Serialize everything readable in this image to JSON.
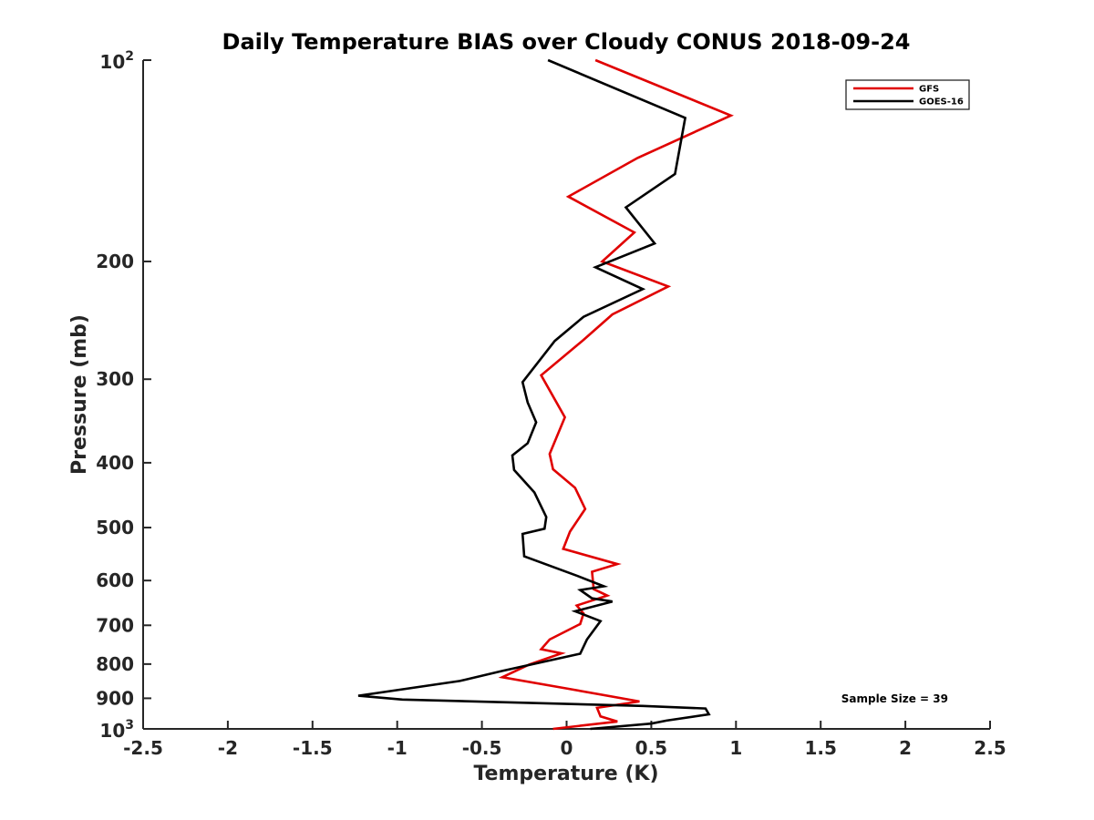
{
  "chart_data": {
    "type": "line",
    "title": "Daily Temperature BIAS over Cloudy CONUS 2018-09-24",
    "xlabel": "Temperature (K)",
    "ylabel": "Pressure (mb)",
    "xlim": [
      -2.5,
      2.5
    ],
    "ylim": [
      100,
      1000
    ],
    "yscale": "log",
    "yreversed": true,
    "x_ticks": [
      -2.5,
      -2,
      -1.5,
      -1,
      -0.5,
      0,
      0.5,
      1,
      1.5,
      2,
      2.5
    ],
    "x_tick_labels": [
      "-2.5",
      "-2",
      "-1.5",
      "-1",
      "-0.5",
      "0",
      "0.5",
      "1",
      "1.5",
      "2",
      "2.5"
    ],
    "y_ticks": [
      {
        "value": 100,
        "base": "10",
        "exp": "2"
      },
      {
        "value": 200,
        "label": "200"
      },
      {
        "value": 300,
        "label": "300"
      },
      {
        "value": 400,
        "label": "400"
      },
      {
        "value": 500,
        "label": "500"
      },
      {
        "value": 600,
        "label": "600"
      },
      {
        "value": 700,
        "label": "700"
      },
      {
        "value": 800,
        "label": "800"
      },
      {
        "value": 900,
        "label": "900"
      },
      {
        "value": 1000,
        "base": "10",
        "exp": "3"
      }
    ],
    "legend_position": "top-right",
    "annotation": "Sample Size = 39",
    "series": [
      {
        "name": "GFS",
        "color": "#e00000",
        "points": [
          [
            0.17,
            100
          ],
          [
            0.97,
            121
          ],
          [
            0.42,
            140
          ],
          [
            0.01,
            160
          ],
          [
            0.4,
            181
          ],
          [
            0.21,
            200
          ],
          [
            0.6,
            218
          ],
          [
            0.27,
            240
          ],
          [
            0.1,
            262
          ],
          [
            -0.15,
            296
          ],
          [
            -0.01,
            342
          ],
          [
            -0.1,
            388
          ],
          [
            -0.08,
            409
          ],
          [
            0.05,
            436
          ],
          [
            0.11,
            469
          ],
          [
            0.02,
            507
          ],
          [
            -0.02,
            538
          ],
          [
            0.3,
            567
          ],
          [
            0.15,
            582
          ],
          [
            0.16,
            618
          ],
          [
            0.24,
            632
          ],
          [
            0.06,
            654
          ],
          [
            0.1,
            672
          ],
          [
            0.08,
            697
          ],
          [
            -0.1,
            735
          ],
          [
            -0.15,
            760
          ],
          [
            -0.03,
            771
          ],
          [
            -0.22,
            801
          ],
          [
            -0.38,
            837
          ],
          [
            0.0,
            870
          ],
          [
            0.43,
            910
          ],
          [
            0.18,
            930
          ],
          [
            0.2,
            958
          ],
          [
            0.3,
            975
          ],
          [
            -0.08,
            1000
          ]
        ]
      },
      {
        "name": "GOES-16",
        "color": "#000000",
        "points": [
          [
            -0.11,
            100
          ],
          [
            0.7,
            122
          ],
          [
            0.64,
            148
          ],
          [
            0.35,
            166
          ],
          [
            0.52,
            188
          ],
          [
            0.17,
            204
          ],
          [
            0.45,
            220
          ],
          [
            0.1,
            242
          ],
          [
            -0.07,
            263
          ],
          [
            -0.26,
            303
          ],
          [
            -0.23,
            325
          ],
          [
            -0.18,
            348
          ],
          [
            -0.23,
            374
          ],
          [
            -0.32,
            390
          ],
          [
            -0.31,
            410
          ],
          [
            -0.19,
            443
          ],
          [
            -0.12,
            482
          ],
          [
            -0.13,
            502
          ],
          [
            -0.26,
            511
          ],
          [
            -0.25,
            552
          ],
          [
            0.06,
            590
          ],
          [
            0.22,
            612
          ],
          [
            0.08,
            620
          ],
          [
            0.15,
            638
          ],
          [
            0.27,
            645
          ],
          [
            0.05,
            667
          ],
          [
            0.2,
            690
          ],
          [
            0.12,
            735
          ],
          [
            0.08,
            772
          ],
          [
            -0.38,
            819
          ],
          [
            -0.63,
            848
          ],
          [
            -1.23,
            892
          ],
          [
            -0.97,
            904
          ],
          [
            0.45,
            924
          ],
          [
            0.82,
            932
          ],
          [
            0.84,
            951
          ],
          [
            0.59,
            972
          ],
          [
            0.5,
            982
          ],
          [
            0.14,
            1000
          ]
        ]
      }
    ]
  }
}
